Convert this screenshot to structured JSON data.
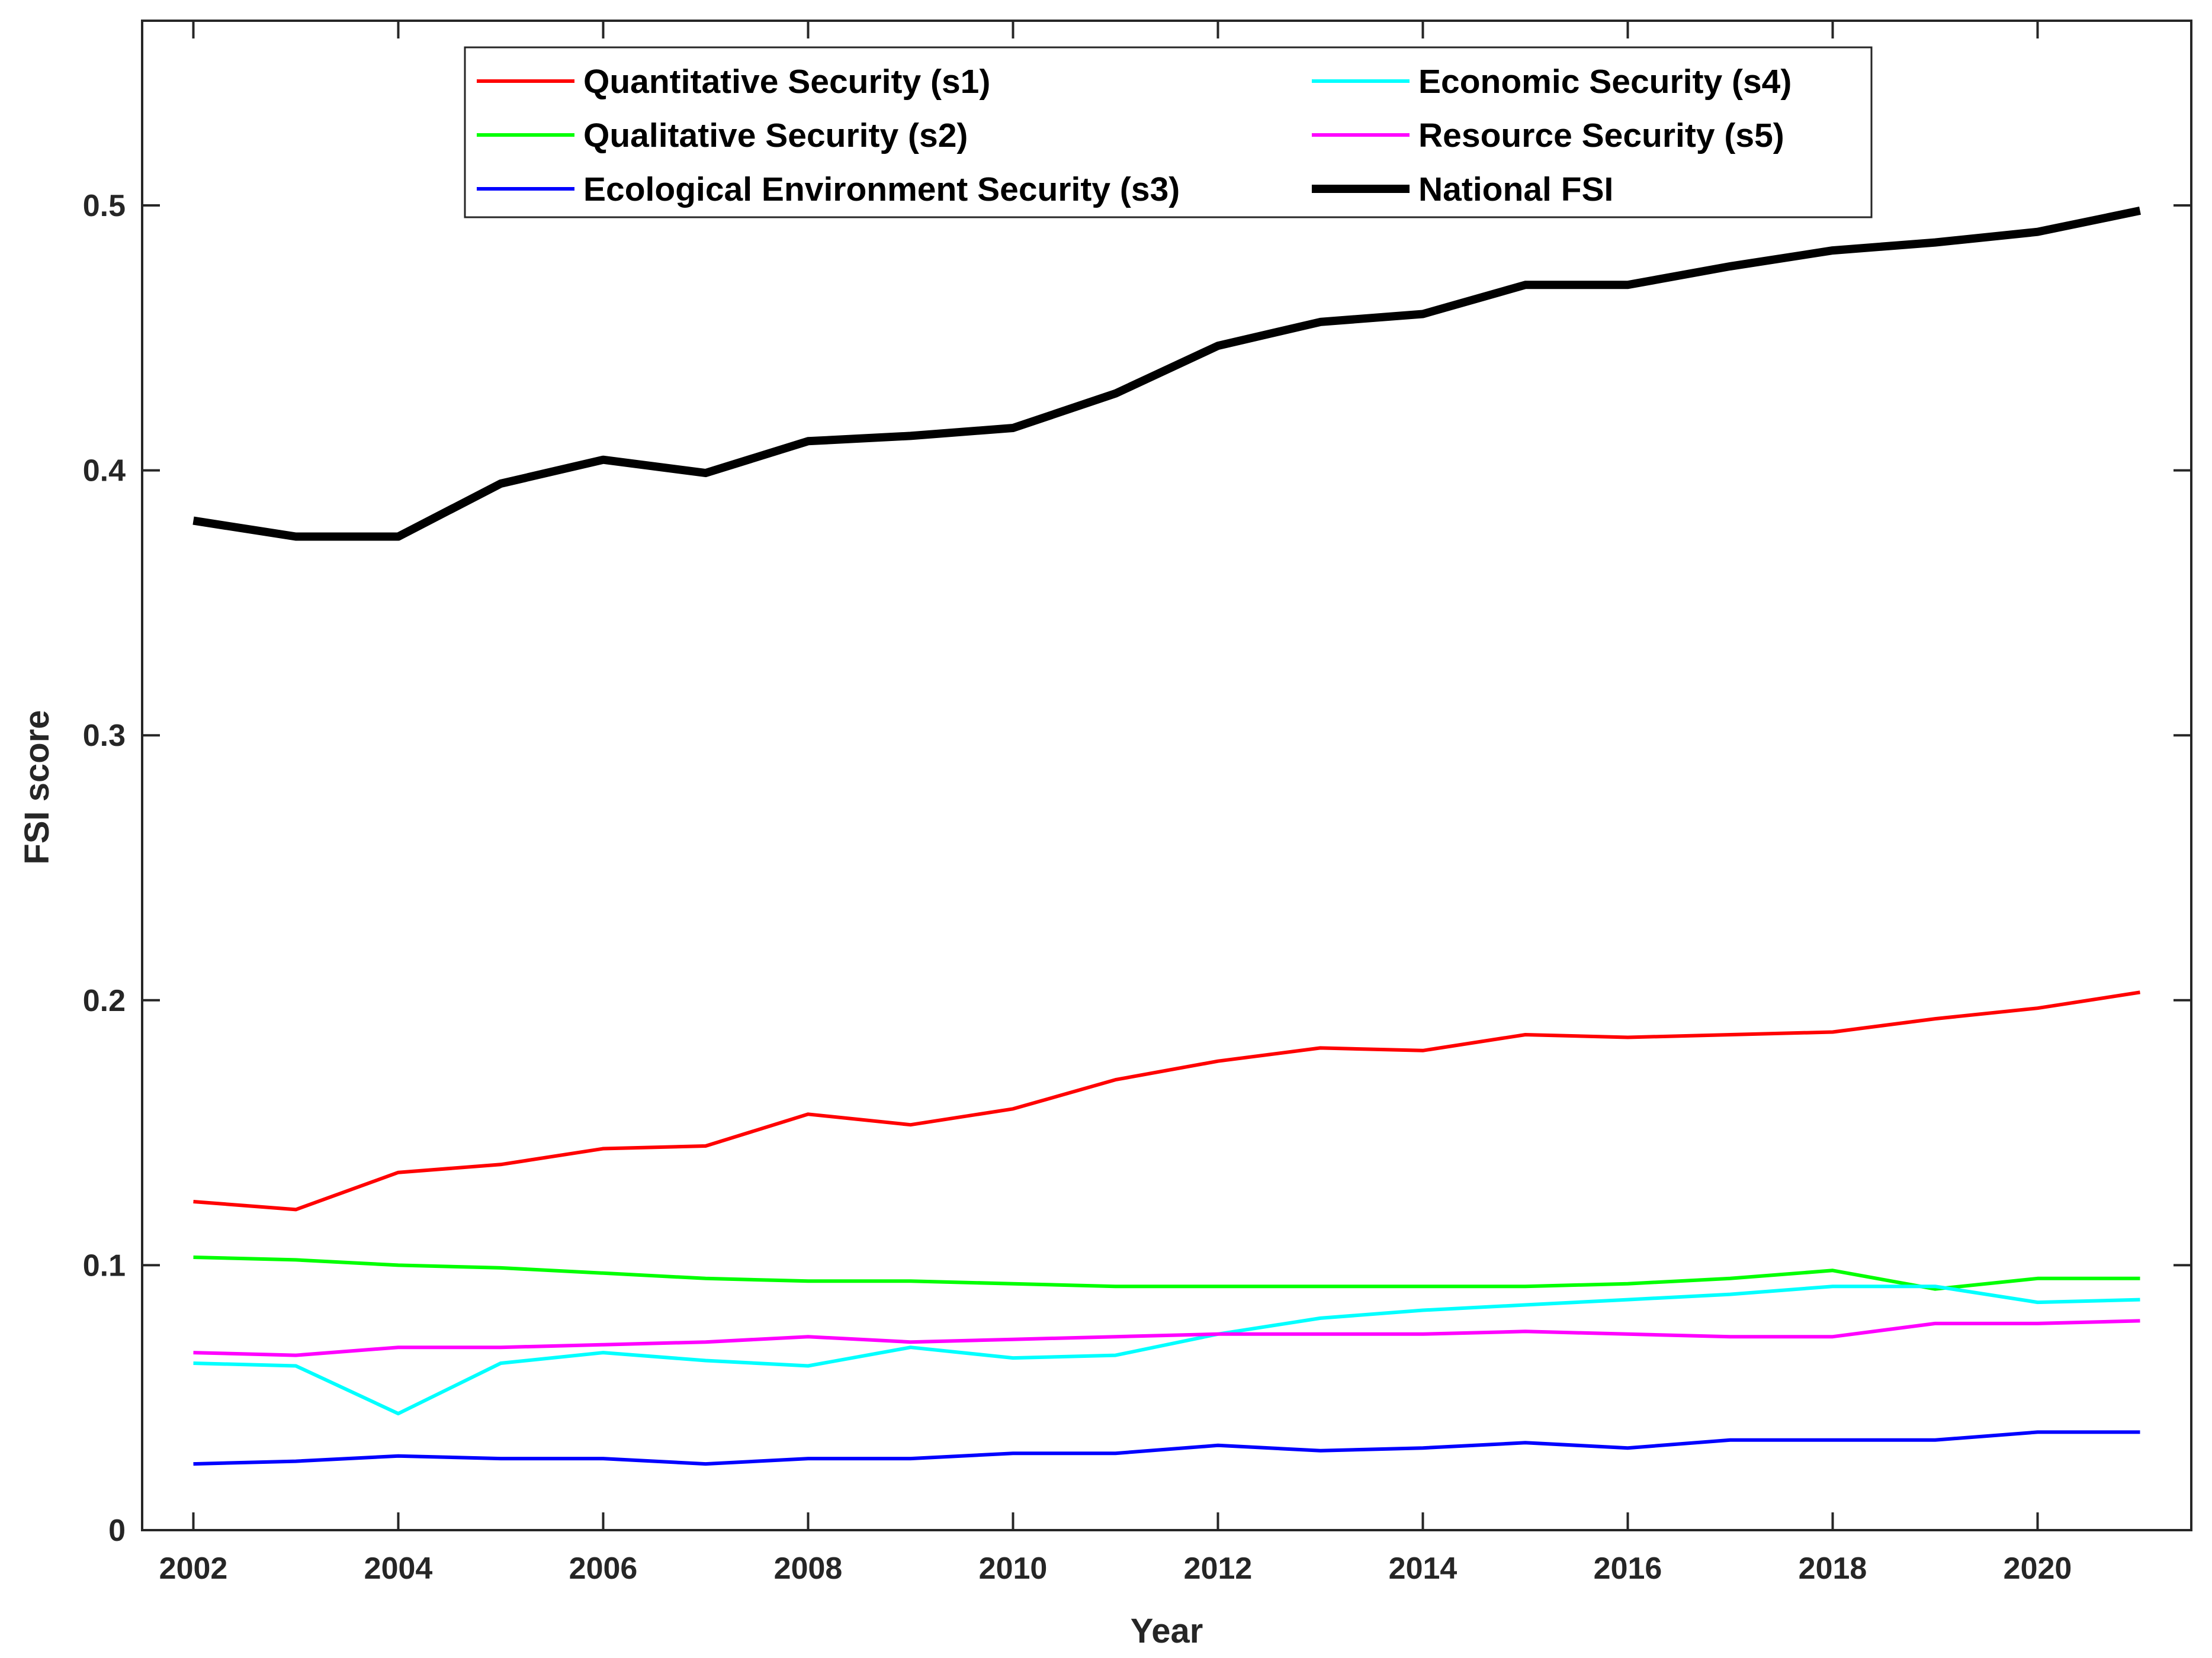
{
  "chart_data": {
    "type": "line",
    "title": "",
    "xlabel": "Year",
    "ylabel": "FSI score",
    "xlim": [
      2001.5,
      2021.5
    ],
    "ylim": [
      0,
      0.5697
    ],
    "x_ticks": [
      2002,
      2004,
      2006,
      2008,
      2010,
      2012,
      2014,
      2016,
      2018,
      2020
    ],
    "y_ticks": [
      0,
      0.1,
      0.2,
      0.3,
      0.4,
      0.5
    ],
    "x_tick_labels": [
      "2002",
      "2004",
      "2006",
      "2008",
      "2010",
      "2012",
      "2014",
      "2016",
      "2018",
      "2020"
    ],
    "y_tick_labels": [
      "0",
      "0.1",
      "0.2",
      "0.3",
      "0.4",
      "0.5"
    ],
    "grid": false,
    "legend_position": "top",
    "x": [
      2002,
      2003,
      2004,
      2005,
      2006,
      2007,
      2008,
      2009,
      2010,
      2011,
      2012,
      2013,
      2014,
      2015,
      2016,
      2017,
      2018,
      2019,
      2020,
      2021
    ],
    "series": [
      {
        "name": "Quantitative Security (s1)",
        "color": "#ff0000",
        "values": [
          0.124,
          0.121,
          0.135,
          0.138,
          0.144,
          0.145,
          0.157,
          0.153,
          0.159,
          0.17,
          0.177,
          0.182,
          0.181,
          0.187,
          0.186,
          0.187,
          0.188,
          0.193,
          0.197,
          0.203
        ]
      },
      {
        "name": "Qualitative Security (s2)",
        "color": "#00ff00",
        "values": [
          0.103,
          0.102,
          0.1,
          0.099,
          0.097,
          0.095,
          0.094,
          0.094,
          0.093,
          0.092,
          0.092,
          0.092,
          0.092,
          0.092,
          0.093,
          0.095,
          0.098,
          0.091,
          0.095,
          0.095
        ]
      },
      {
        "name": "Ecological Environment Security (s3)",
        "color": "#0000ff",
        "values": [
          0.025,
          0.026,
          0.028,
          0.027,
          0.027,
          0.025,
          0.027,
          0.027,
          0.029,
          0.029,
          0.032,
          0.03,
          0.031,
          0.033,
          0.031,
          0.034,
          0.034,
          0.034,
          0.037,
          0.037
        ]
      },
      {
        "name": "Economic Security (s4)",
        "color": "#00ffff",
        "values": [
          0.063,
          0.062,
          0.044,
          0.063,
          0.067,
          0.064,
          0.062,
          0.069,
          0.065,
          0.066,
          0.074,
          0.08,
          0.083,
          0.085,
          0.087,
          0.089,
          0.092,
          0.092,
          0.086,
          0.087
        ]
      },
      {
        "name": "Resource Security (s5)",
        "color": "#ff00ff",
        "values": [
          0.067,
          0.066,
          0.069,
          0.069,
          0.07,
          0.071,
          0.073,
          0.071,
          0.072,
          0.073,
          0.074,
          0.074,
          0.074,
          0.075,
          0.074,
          0.073,
          0.073,
          0.078,
          0.078,
          0.079
        ]
      },
      {
        "name": "National FSI",
        "color": "#000000",
        "values": [
          0.381,
          0.375,
          0.375,
          0.395,
          0.404,
          0.399,
          0.411,
          0.413,
          0.416,
          0.429,
          0.447,
          0.456,
          0.459,
          0.47,
          0.47,
          0.477,
          0.483,
          0.486,
          0.49,
          0.498
        ]
      }
    ]
  }
}
